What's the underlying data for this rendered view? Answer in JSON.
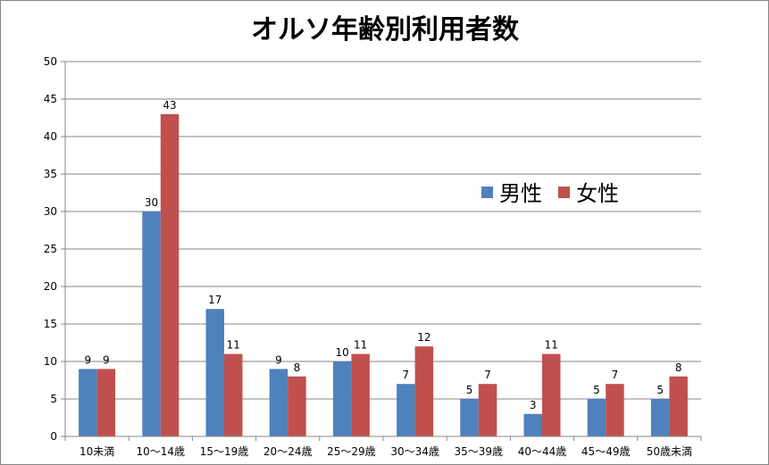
{
  "chart_data": {
    "type": "bar",
    "title": "オルソ年齢別利用者数",
    "xlabel": "",
    "ylabel": "",
    "ylim": [
      0,
      50
    ],
    "yticks": [
      0,
      5,
      10,
      15,
      20,
      25,
      30,
      35,
      40,
      45,
      50
    ],
    "grid": true,
    "legend_position": "right",
    "categories": [
      "10未満",
      "10～14歳",
      "15～19歳",
      "20～24歳",
      "25～29歳",
      "30～34歳",
      "35～39歳",
      "40～44歳",
      "45～49歳",
      "50歳未満"
    ],
    "series": [
      {
        "name": "男性",
        "color": "#4F81BD",
        "values": [
          9,
          30,
          17,
          9,
          10,
          7,
          5,
          3,
          5,
          5
        ]
      },
      {
        "name": "女性",
        "color": "#C0504D",
        "values": [
          9,
          43,
          11,
          8,
          11,
          12,
          7,
          11,
          7,
          8
        ]
      }
    ]
  }
}
